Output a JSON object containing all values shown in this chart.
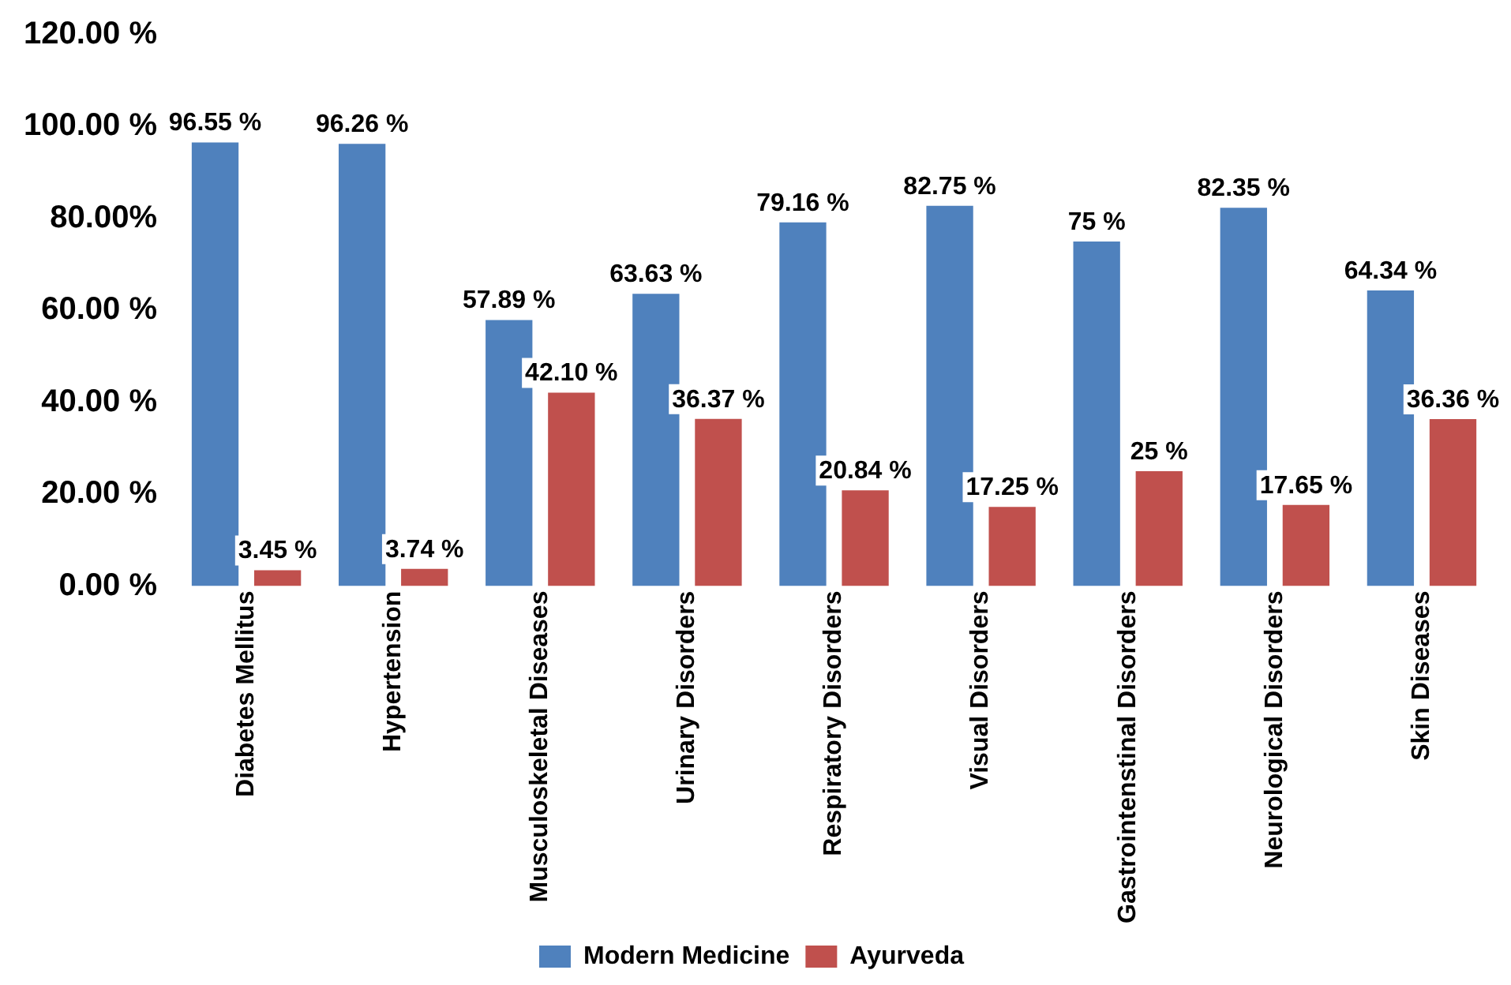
{
  "chart_data": {
    "type": "bar",
    "categories": [
      "Diabetes Mellitus",
      "Hypertension",
      "Musculoskeletal Diseases",
      "Urinary Disorders",
      "Respiratory Disorders",
      "Visual Disorders",
      "Gastrointenstinal Disorders",
      "Neurological Disorders",
      "Skin Diseases"
    ],
    "series": [
      {
        "name": "Modern Medicine",
        "color": "#4f81bd",
        "values": [
          96.55,
          96.26,
          57.89,
          63.63,
          79.16,
          82.75,
          75,
          82.35,
          64.34
        ],
        "value_labels": [
          "96.55 %",
          "96.26 %",
          "57.89 %",
          "63.63 %",
          "79.16 %",
          "82.75 %",
          "75 %",
          "82.35 %",
          "64.34 %"
        ]
      },
      {
        "name": "Ayurveda",
        "color": "#c0504d",
        "values": [
          3.45,
          3.74,
          42.1,
          36.37,
          20.84,
          17.25,
          25,
          17.65,
          36.36
        ],
        "value_labels": [
          "3.45 %",
          "3.74 %",
          "42.10 %",
          "36.37 %",
          "20.84 %",
          "17.25 %",
          "25 %",
          "17.65 %",
          "36.36 %"
        ]
      }
    ],
    "ylim": [
      0,
      120
    ],
    "yticks": [
      {
        "value": 0,
        "label": "0.00 %"
      },
      {
        "value": 20,
        "label": "20.00 %"
      },
      {
        "value": 40,
        "label": "40.00 %"
      },
      {
        "value": 60,
        "label": "60.00 %"
      },
      {
        "value": 80,
        "label": "80.00%"
      },
      {
        "value": 100,
        "label": "100.00 %"
      },
      {
        "value": 120,
        "label": "120.00 %"
      }
    ],
    "grid": false,
    "legend": "bottom"
  }
}
